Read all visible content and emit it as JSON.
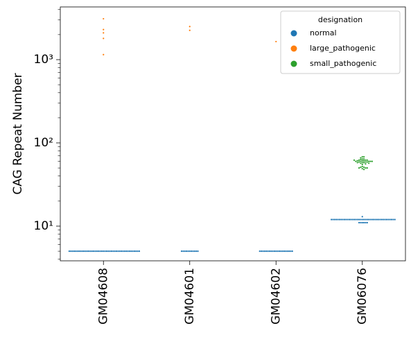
{
  "chart_data": {
    "type": "swarm",
    "ylabel": "CAG Repeat Number",
    "categories": [
      "GM04608",
      "GM04601",
      "GM04602",
      "GM06076"
    ],
    "log_y": true,
    "ylim": [
      3.83,
      4300
    ],
    "yticks": [
      {
        "value": 10,
        "label": "10¹"
      },
      {
        "value": 100,
        "label": "10²"
      },
      {
        "value": 1000,
        "label": "10³"
      }
    ],
    "yminor": [
      4,
      5,
      6,
      7,
      8,
      9,
      20,
      30,
      40,
      50,
      60,
      70,
      80,
      90,
      200,
      300,
      400,
      500,
      600,
      700,
      800,
      900,
      2000,
      3000,
      4000
    ],
    "legend": {
      "title": "designation",
      "position": "upper right"
    },
    "series": [
      {
        "name": "normal",
        "color": "#1f77b4",
        "values": [
          [
            5,
            5,
            5,
            5,
            5,
            5,
            5,
            5,
            5,
            5,
            5,
            5,
            5,
            5,
            5,
            5,
            5,
            5,
            5,
            5,
            5,
            5,
            5,
            5,
            5,
            5,
            5,
            5,
            5,
            5,
            5,
            5,
            5,
            5,
            5,
            5,
            5,
            5,
            5,
            5,
            5,
            5,
            5,
            5
          ],
          [
            5,
            5,
            5,
            5,
            5,
            5,
            5,
            5,
            5,
            5,
            5
          ],
          [
            5,
            5,
            5,
            5,
            5,
            5,
            5,
            5,
            5,
            5,
            5,
            5,
            5,
            5,
            5,
            5,
            5,
            5,
            5,
            5,
            5
          ],
          [
            12,
            12,
            12,
            12,
            12,
            12,
            12,
            12,
            12,
            12,
            12,
            12,
            12,
            12,
            12,
            12,
            12,
            12,
            12,
            12,
            12,
            12,
            12,
            12,
            12,
            12,
            12,
            12,
            12,
            12,
            12,
            12,
            12,
            12,
            12,
            12,
            12,
            12,
            12,
            12,
            11,
            11,
            11,
            11,
            11,
            11,
            13
          ]
        ]
      },
      {
        "name": "large_pathogenic",
        "color": "#ff7f0e",
        "values": [
          [
            3100,
            2300,
            2100,
            1800,
            1150
          ],
          [
            2500,
            2250
          ],
          [
            1650
          ],
          []
        ]
      },
      {
        "name": "small_pathogenic",
        "color": "#2ca02c",
        "values": [
          [],
          [],
          [],
          [
            68,
            68,
            66,
            64,
            64,
            63,
            62,
            62,
            62,
            61,
            61,
            61,
            60,
            60,
            60,
            60,
            59,
            59,
            59,
            58,
            58,
            58,
            57,
            57,
            56,
            55,
            52,
            51,
            51,
            50,
            50,
            50,
            49,
            48,
            62,
            60
          ]
        ]
      }
    ]
  }
}
